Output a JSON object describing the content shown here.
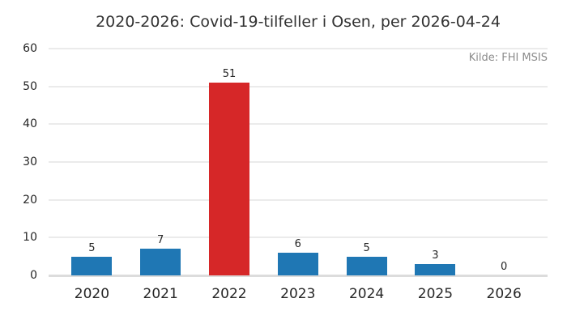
{
  "chart": {
    "title": "2020-2026: Covid-19-tilfeller i Osen, per 2026-04-24",
    "source_note": "Kilde: FHI MSIS"
  },
  "chart_data": {
    "type": "bar",
    "title": "2020-2026: Covid-19-tilfeller i Osen, per 2026-04-24",
    "annotation": "Kilde: FHI MSIS",
    "categories": [
      "2020",
      "2021",
      "2022",
      "2023",
      "2024",
      "2025",
      "2026"
    ],
    "values": [
      5,
      7,
      51,
      6,
      5,
      3,
      0
    ],
    "value_labels": [
      "5",
      "7",
      "51",
      "6",
      "5",
      "3",
      "0"
    ],
    "bar_colors": [
      "#1f77b4",
      "#1f77b4",
      "#d62728",
      "#1f77b4",
      "#1f77b4",
      "#1f77b4",
      "#1f77b4"
    ],
    "yticks": [
      0,
      10,
      20,
      30,
      40,
      50,
      60
    ],
    "ylim": [
      0,
      60
    ],
    "xlabel": "",
    "ylabel": "",
    "legend_position": "none",
    "grid": "horizontal",
    "colors": {
      "bar_default": "#1f77b4",
      "bar_highlight": "#d62728",
      "gridline": "#ebebeb",
      "baseline": "#dcdcdc",
      "tick_text": "#262626",
      "title_text": "#333333",
      "source_text": "#8c8c8c"
    }
  }
}
